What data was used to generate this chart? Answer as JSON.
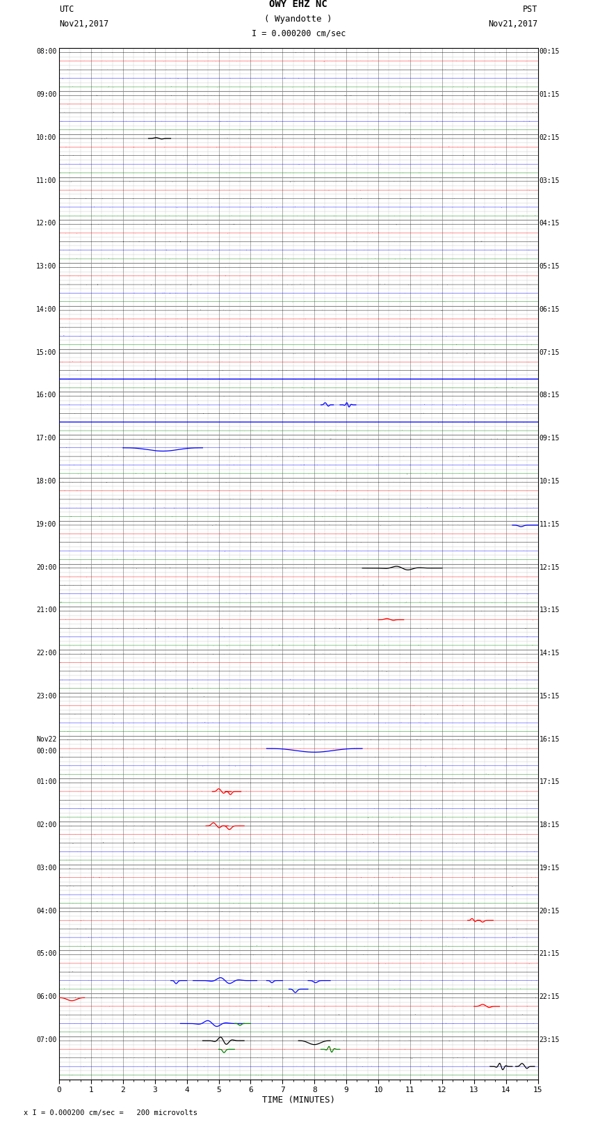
{
  "title_line1": "OWY EHZ NC",
  "title_line2": "( Wyandotte )",
  "scale_label": "I = 0.000200 cm/sec",
  "left_label_line1": "UTC",
  "left_label_line2": "Nov21,2017",
  "right_label_line1": "PST",
  "right_label_line2": "Nov21,2017",
  "bottom_note": "x I = 0.000200 cm/sec =   200 microvolts",
  "xlabel": "TIME (MINUTES)",
  "utc_labels": [
    "08:00",
    "09:00",
    "10:00",
    "11:00",
    "12:00",
    "13:00",
    "14:00",
    "15:00",
    "16:00",
    "17:00",
    "18:00",
    "19:00",
    "20:00",
    "21:00",
    "22:00",
    "23:00",
    "Nov22\n00:00",
    "01:00",
    "02:00",
    "03:00",
    "04:00",
    "05:00",
    "06:00",
    "07:00"
  ],
  "pst_labels": [
    "00:15",
    "01:15",
    "02:15",
    "03:15",
    "04:15",
    "05:15",
    "06:15",
    "07:15",
    "08:15",
    "09:15",
    "10:15",
    "11:15",
    "12:15",
    "13:15",
    "14:15",
    "15:15",
    "16:15",
    "17:15",
    "18:15",
    "19:15",
    "20:15",
    "21:15",
    "22:15",
    "23:15"
  ],
  "n_rows": 24,
  "n_subrows": 5,
  "x_min": 0,
  "x_max": 15,
  "x_ticks": [
    0,
    1,
    2,
    3,
    4,
    5,
    6,
    7,
    8,
    9,
    10,
    11,
    12,
    13,
    14,
    15
  ],
  "background_color": "#ffffff",
  "grid_color": "#888888",
  "minor_grid_color": "#cccccc"
}
